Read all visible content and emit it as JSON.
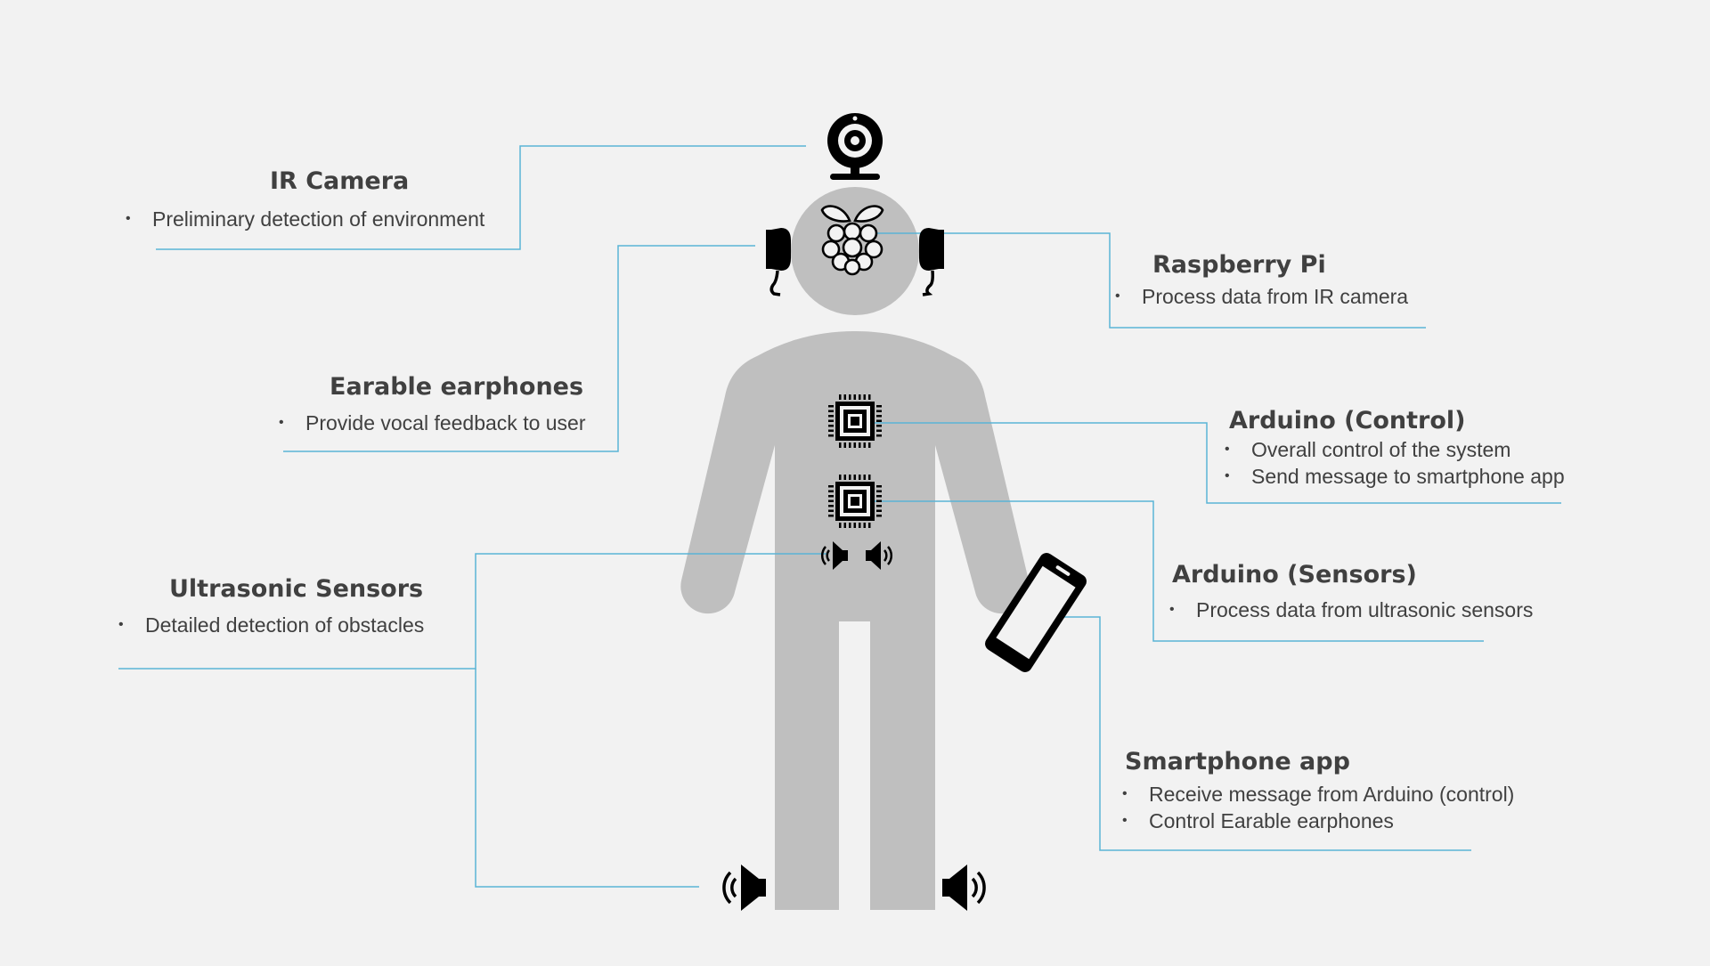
{
  "components": {
    "ir_camera": {
      "title": "IR Camera",
      "bullets": [
        "Preliminary detection of environment"
      ]
    },
    "raspberry_pi": {
      "title": "Raspberry Pi",
      "bullets": [
        "Process data from IR camera"
      ]
    },
    "earable_earphones": {
      "title": "Earable earphones",
      "bullets": [
        "Provide vocal feedback to user"
      ]
    },
    "arduino_control": {
      "title": "Arduino (Control)",
      "bullets": [
        "Overall control of the system",
        "Send message to smartphone app"
      ]
    },
    "arduino_sensors": {
      "title": "Arduino (Sensors)",
      "bullets": [
        "Process data from ultrasonic sensors"
      ]
    },
    "ultrasonic_sensors": {
      "title": "Ultrasonic Sensors",
      "bullets": [
        "Detailed detection of obstacles"
      ]
    },
    "smartphone_app": {
      "title": "Smartphone app",
      "bullets": [
        "Receive message from Arduino (control)",
        "Control Earable earphones"
      ]
    }
  },
  "colors": {
    "background": "#f2f2f2",
    "body": "#bfbfbf",
    "connector": "#5ab4d6",
    "text": "#404040",
    "icon": "#000000"
  },
  "icons": [
    "webcam-icon",
    "raspberry-pi-icon",
    "earphone-icon",
    "chip-icon",
    "speaker-icon",
    "smartphone-icon"
  ]
}
